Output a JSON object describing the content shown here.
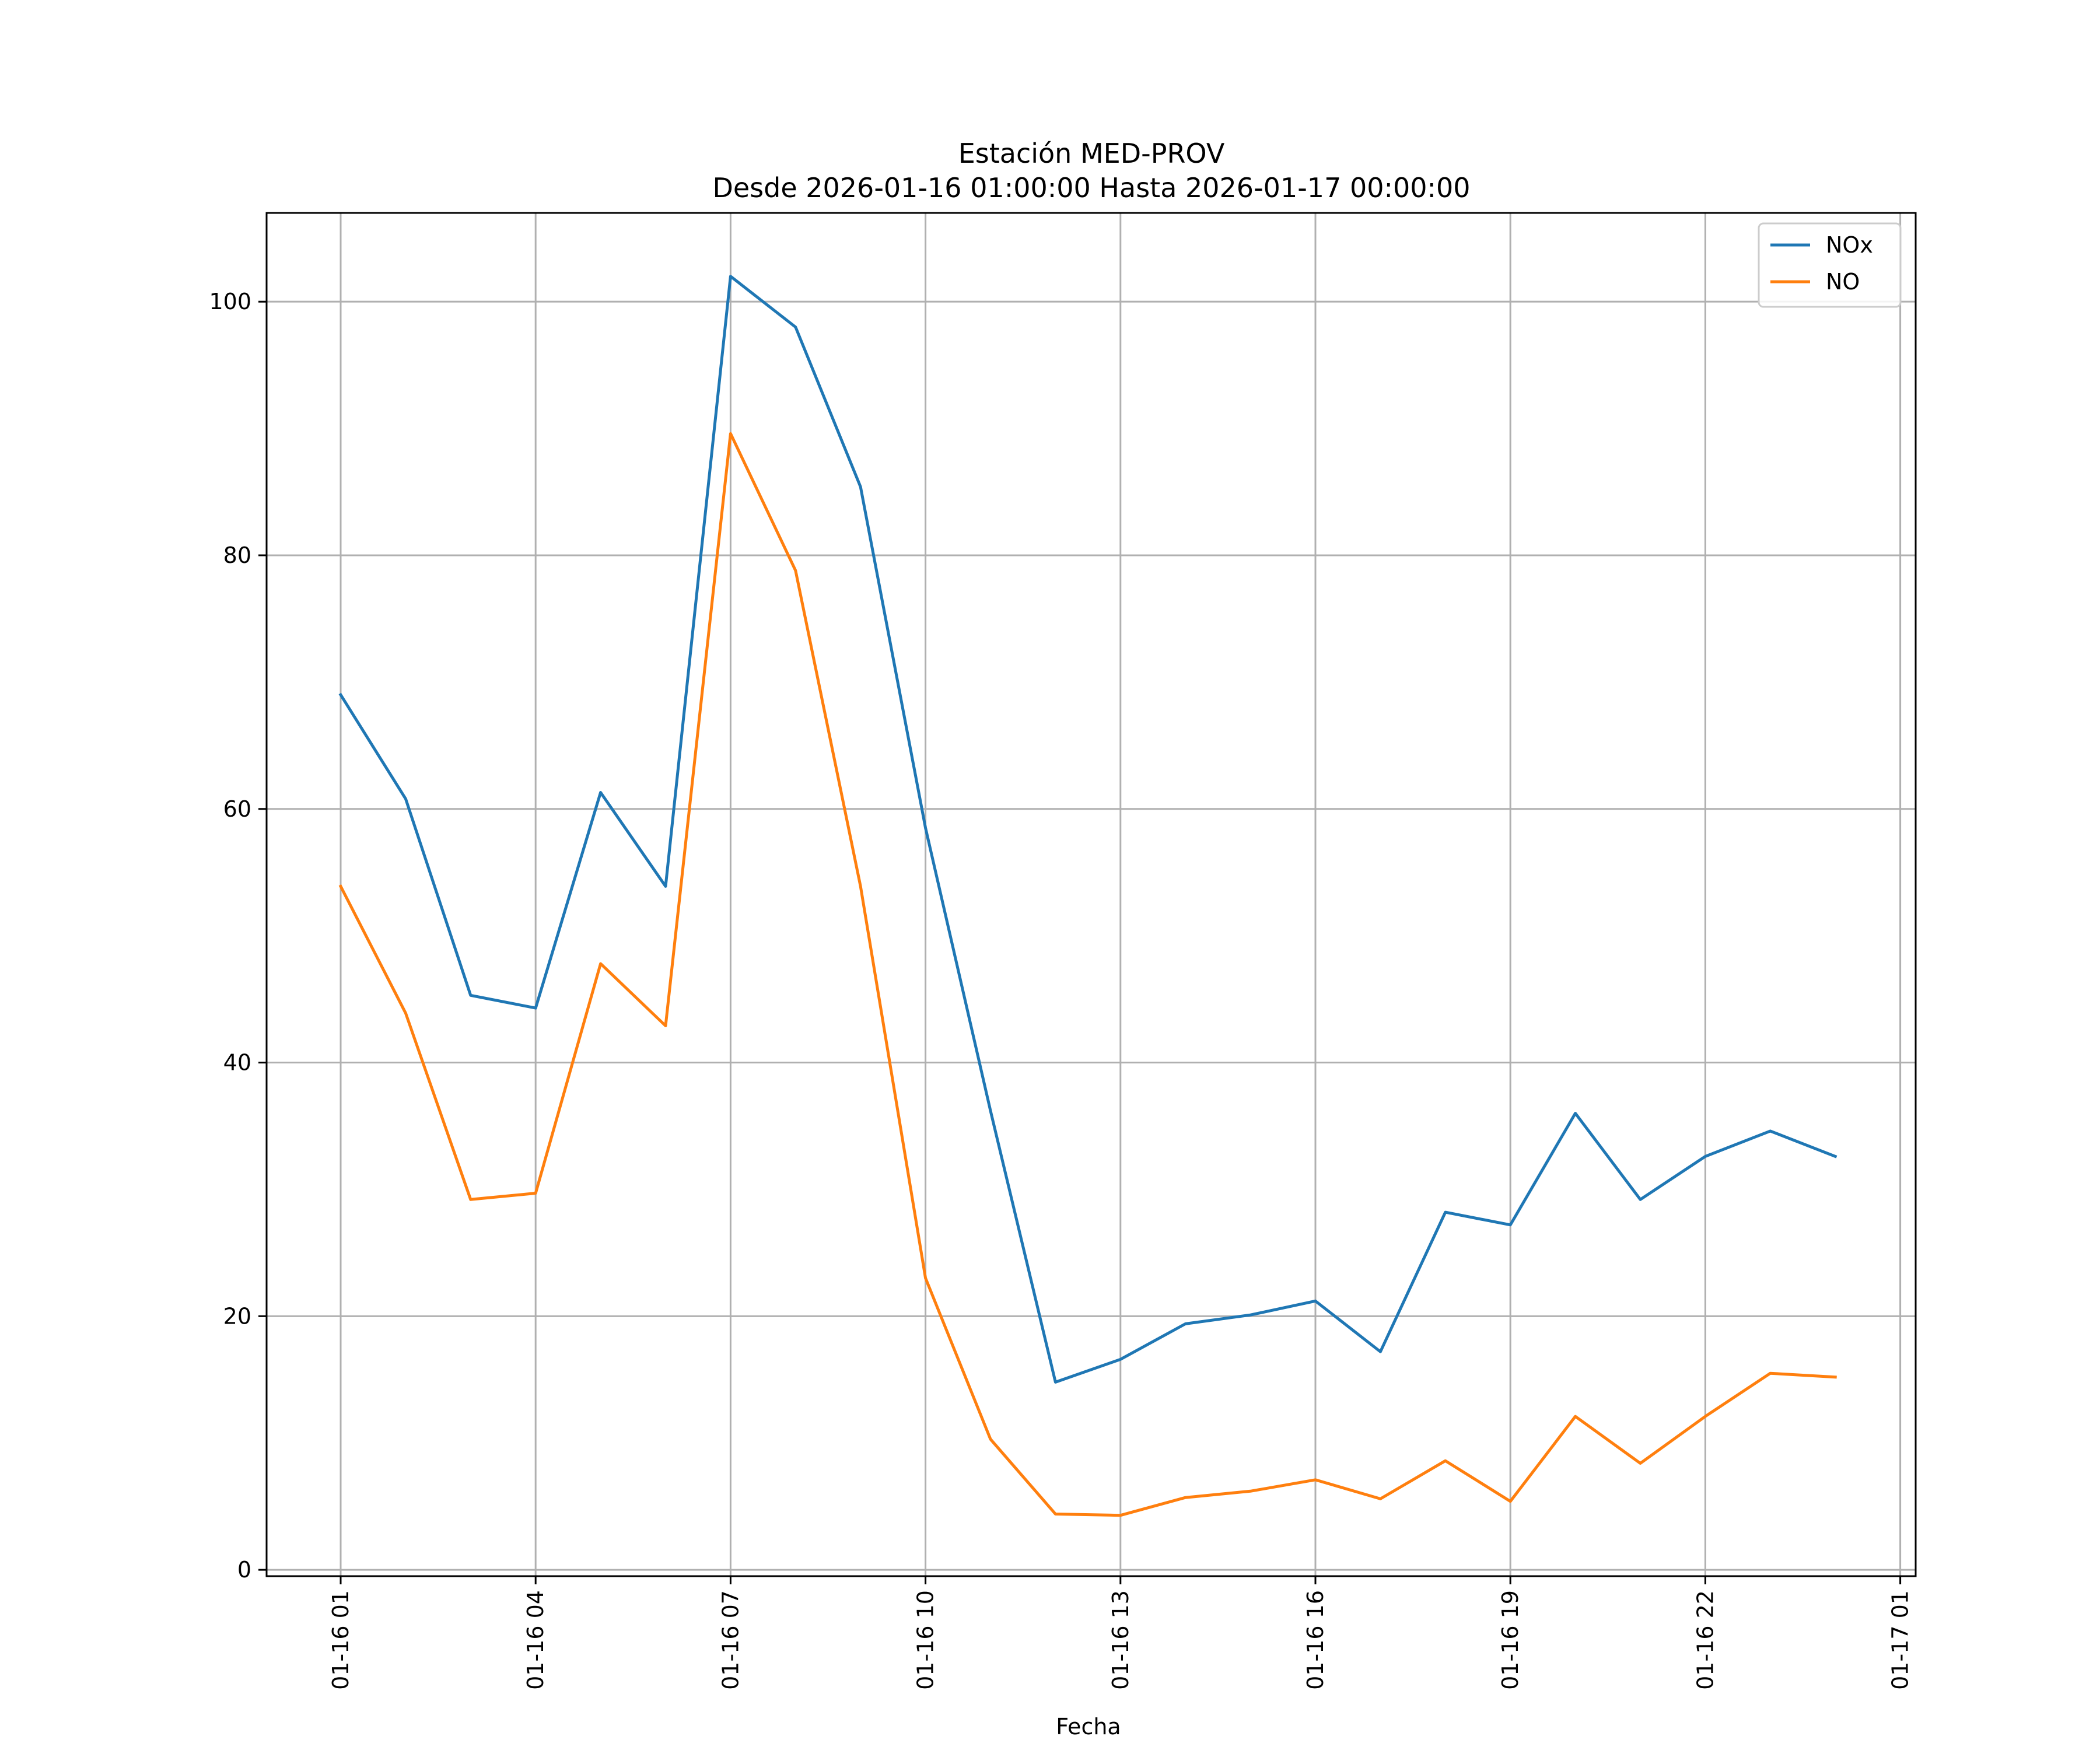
{
  "chart_data": {
    "type": "line",
    "title": "Estación MED-PROV",
    "subtitle": "Desde 2026-01-16 01:00:00 Hasta 2026-01-17 00:00:00",
    "xlabel": "Fecha",
    "ylabel": "",
    "x": [
      "01-16 01",
      "01-16 02",
      "01-16 03",
      "01-16 04",
      "01-16 05",
      "01-16 06",
      "01-16 07",
      "01-16 08",
      "01-16 09",
      "01-16 10",
      "01-16 11",
      "01-16 12",
      "01-16 13",
      "01-16 14",
      "01-16 15",
      "01-16 16",
      "01-16 17",
      "01-16 18",
      "01-16 19",
      "01-16 20",
      "01-16 21",
      "01-16 22",
      "01-16 23",
      "01-17 00"
    ],
    "series": [
      {
        "name": "NOx",
        "color": "#1f77b4",
        "values": [
          69.0,
          60.8,
          45.3,
          44.3,
          61.3,
          53.9,
          102.0,
          98.0,
          85.4,
          58.5,
          36.2,
          14.8,
          16.6,
          19.4,
          20.1,
          21.2,
          17.2,
          28.2,
          27.2,
          36.0,
          29.2,
          32.6,
          34.6,
          32.6
        ]
      },
      {
        "name": "NO",
        "color": "#ff7f0e",
        "values": [
          53.9,
          43.9,
          29.2,
          29.7,
          47.8,
          42.9,
          89.6,
          78.8,
          53.9,
          23.0,
          10.3,
          4.4,
          4.3,
          5.7,
          6.2,
          7.1,
          5.6,
          8.6,
          5.4,
          12.1,
          8.4,
          12.1,
          15.5,
          15.2
        ]
      }
    ],
    "xticks": [
      "01-16 01",
      "01-16 04",
      "01-16 07",
      "01-16 10",
      "01-16 13",
      "01-16 16",
      "01-16 19",
      "01-16 22",
      "01-17 01"
    ],
    "yticks": [
      "0",
      "20",
      "40",
      "60",
      "80",
      "100"
    ],
    "ylim": [
      -0.5,
      107
    ],
    "grid": true,
    "legend_position": "top-right"
  }
}
